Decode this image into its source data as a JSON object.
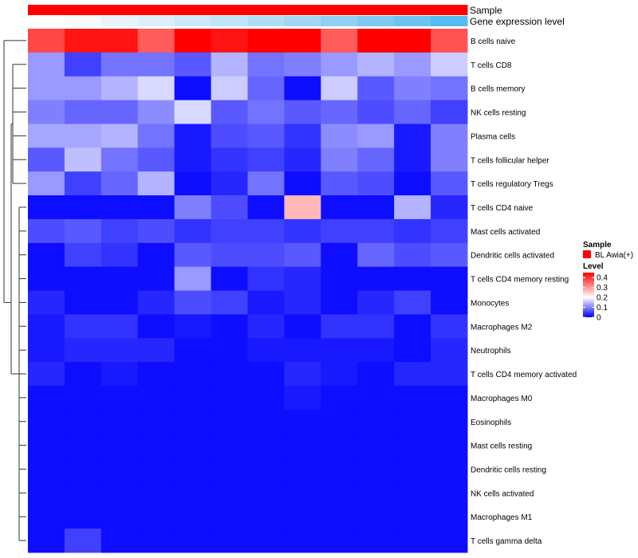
{
  "chart_data": {
    "type": "heatmap",
    "annotations": [
      {
        "name": "Sample",
        "colors": [
          "#ff0000",
          "#ff0000",
          "#ff0000",
          "#ff0000",
          "#ff0000",
          "#ff0000",
          "#ff0000",
          "#ff0000",
          "#ff0000",
          "#ff0000",
          "#ff0000",
          "#ff0000"
        ]
      },
      {
        "name": "Gene expression level",
        "colors": [
          "#ffffff",
          "#f6fafd",
          "#e8f3fb",
          "#dbeefa",
          "#cde9f9",
          "#bfe3f8",
          "#b0ddf6",
          "#a1d7f5",
          "#90d0f3",
          "#7fc9f1",
          "#6cc3f0",
          "#56bbee"
        ]
      }
    ],
    "rows": [
      {
        "label": "B cells naive",
        "values": [
          0.38,
          0.43,
          0.43,
          0.36,
          0.47,
          0.43,
          0.47,
          0.46,
          0.36,
          0.45,
          0.47,
          0.37
        ]
      },
      {
        "label": "T cells CD8",
        "values": [
          0.12,
          0.05,
          0.09,
          0.09,
          0.07,
          0.14,
          0.09,
          0.1,
          0.12,
          0.14,
          0.12,
          0.16
        ]
      },
      {
        "label": "B cells memory",
        "values": [
          0.12,
          0.12,
          0.14,
          0.17,
          0.01,
          0.16,
          0.08,
          0.01,
          0.16,
          0.07,
          0.1,
          0.09
        ]
      },
      {
        "label": "NK cells resting",
        "values": [
          0.1,
          0.08,
          0.08,
          0.11,
          0.17,
          0.07,
          0.09,
          0.07,
          0.08,
          0.06,
          0.08,
          0.05
        ]
      },
      {
        "label": "Plasma cells",
        "values": [
          0.13,
          0.13,
          0.14,
          0.09,
          0.02,
          0.06,
          0.07,
          0.04,
          0.11,
          0.12,
          0.02,
          0.1
        ]
      },
      {
        "label": "T cells follicular helper",
        "values": [
          0.07,
          0.15,
          0.09,
          0.07,
          0.02,
          0.04,
          0.05,
          0.03,
          0.1,
          0.08,
          0.02,
          0.1
        ]
      },
      {
        "label": "T cells regulatory  Tregs",
        "values": [
          0.12,
          0.05,
          0.08,
          0.14,
          0.01,
          0.03,
          0.09,
          0.01,
          0.07,
          0.06,
          0.01,
          0.07
        ]
      },
      {
        "label": "T cells CD4 naive",
        "values": [
          0.01,
          0.01,
          0.01,
          0.01,
          0.1,
          0.06,
          0.01,
          0.27,
          0.01,
          0.01,
          0.14,
          0.03
        ]
      },
      {
        "label": "Mast cells activated",
        "values": [
          0.06,
          0.07,
          0.05,
          0.06,
          0.04,
          0.05,
          0.05,
          0.04,
          0.05,
          0.05,
          0.04,
          0.05
        ]
      },
      {
        "label": "Dendritic cells activated",
        "values": [
          0.01,
          0.05,
          0.04,
          0.01,
          0.07,
          0.06,
          0.06,
          0.07,
          0.01,
          0.08,
          0.06,
          0.07
        ]
      },
      {
        "label": "T cells CD4 memory resting",
        "values": [
          0.01,
          0.01,
          0.01,
          0.01,
          0.12,
          0.01,
          0.04,
          0.03,
          0.01,
          0.01,
          0.01,
          0.01
        ]
      },
      {
        "label": "Monocytes",
        "values": [
          0.03,
          0.01,
          0.01,
          0.03,
          0.06,
          0.05,
          0.02,
          0.03,
          0.01,
          0.03,
          0.05,
          0.01
        ]
      },
      {
        "label": "Macrophages M2",
        "values": [
          0.02,
          0.04,
          0.04,
          0.01,
          0.02,
          0.01,
          0.03,
          0.01,
          0.04,
          0.04,
          0.01,
          0.04
        ]
      },
      {
        "label": "Neutrophils",
        "values": [
          0.02,
          0.03,
          0.03,
          0.03,
          0.01,
          0.01,
          0.02,
          0.02,
          0.02,
          0.02,
          0.01,
          0.03
        ]
      },
      {
        "label": "T cells CD4 memory activated",
        "values": [
          0.03,
          0.01,
          0.02,
          0.01,
          0.01,
          0.01,
          0.01,
          0.03,
          0.02,
          0.01,
          0.03,
          0.03
        ]
      },
      {
        "label": "Macrophages M0",
        "values": [
          0.01,
          0.01,
          0.01,
          0.01,
          0.01,
          0.01,
          0.01,
          0.02,
          0.01,
          0.01,
          0.01,
          0.01
        ]
      },
      {
        "label": "Eosinophils",
        "values": [
          0.01,
          0.01,
          0.01,
          0.01,
          0.01,
          0.01,
          0.01,
          0.01,
          0.01,
          0.01,
          0.01,
          0.01
        ]
      },
      {
        "label": "Mast cells resting",
        "values": [
          0.01,
          0.01,
          0.01,
          0.01,
          0.01,
          0.01,
          0.01,
          0.01,
          0.01,
          0.01,
          0.01,
          0.01
        ]
      },
      {
        "label": "Dendritic cells resting",
        "values": [
          0.01,
          0.01,
          0.01,
          0.01,
          0.01,
          0.01,
          0.01,
          0.01,
          0.01,
          0.01,
          0.01,
          0.01
        ]
      },
      {
        "label": "NK cells activated",
        "values": [
          0.01,
          0.01,
          0.01,
          0.01,
          0.01,
          0.01,
          0.01,
          0.01,
          0.01,
          0.01,
          0.01,
          0.01
        ]
      },
      {
        "label": "Macrophages M1",
        "values": [
          0.01,
          0.01,
          0.01,
          0.01,
          0.01,
          0.01,
          0.01,
          0.01,
          0.01,
          0.01,
          0.01,
          0.01
        ]
      },
      {
        "label": "T cells gamma delta",
        "values": [
          0.01,
          0.05,
          0.01,
          0.01,
          0.01,
          0.01,
          0.01,
          0.01,
          0.01,
          0.01,
          0.01,
          0.01
        ]
      }
    ],
    "color_scale": {
      "min": 0,
      "max": 0.45,
      "stops": [
        {
          "value": 0,
          "color": "#0000ff"
        },
        {
          "value": 0.2,
          "color": "#ffffff"
        },
        {
          "value": 0.45,
          "color": "#ff0000"
        }
      ]
    },
    "legend": {
      "sample_title": "Sample",
      "sample_entry": "BL Awia(+)",
      "sample_color": "#ff0000",
      "level_title": "Level",
      "ticks": [
        "0.4",
        "0.3",
        "0.2",
        "0.1",
        "0"
      ],
      "tick_values": [
        0.4,
        0.3,
        0.2,
        0.1,
        0
      ]
    }
  }
}
